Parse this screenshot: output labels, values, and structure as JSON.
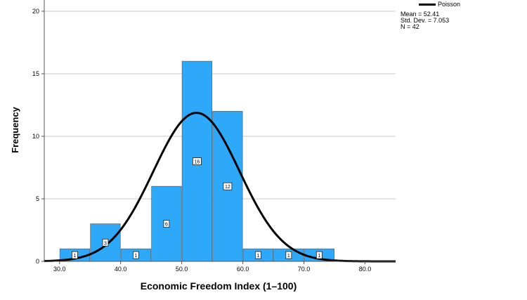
{
  "chart_data": {
    "type": "bar",
    "xlabel": "Economic Freedom Index (1–100)",
    "ylabel": "Frequency",
    "xlim": [
      27.5,
      85
    ],
    "ylim": [
      0,
      20
    ],
    "x_ticks": [
      "30.0",
      "40.0",
      "50.0",
      "60.0",
      "70.0",
      "80.0"
    ],
    "x_tick_values": [
      30,
      40,
      50,
      60,
      70,
      80
    ],
    "y_ticks": [
      0,
      5,
      10,
      15,
      20
    ],
    "grid": "horizontal",
    "bar_color": "#2ea8f8",
    "curve_color": "#000000",
    "bins": [
      {
        "start": 30,
        "end": 35,
        "value": 1
      },
      {
        "start": 35,
        "end": 40,
        "value": 3
      },
      {
        "start": 40,
        "end": 45,
        "value": 1
      },
      {
        "start": 45,
        "end": 50,
        "value": 6
      },
      {
        "start": 50,
        "end": 55,
        "value": 16
      },
      {
        "start": 55,
        "end": 60,
        "value": 12
      },
      {
        "start": 60,
        "end": 65,
        "value": 1
      },
      {
        "start": 65,
        "end": 70,
        "value": 1
      },
      {
        "start": 70,
        "end": 75,
        "value": 1
      }
    ],
    "curve": {
      "name": "Poisson",
      "mean": 52.41,
      "sd": 7.053,
      "n": 42,
      "bin_width": 5
    },
    "legend": {
      "placement": "top-right",
      "curve_label": "Poisson",
      "stats": [
        "Mean = 52.41",
        "Std. Dev. = 7.053",
        "N = 42"
      ]
    }
  }
}
